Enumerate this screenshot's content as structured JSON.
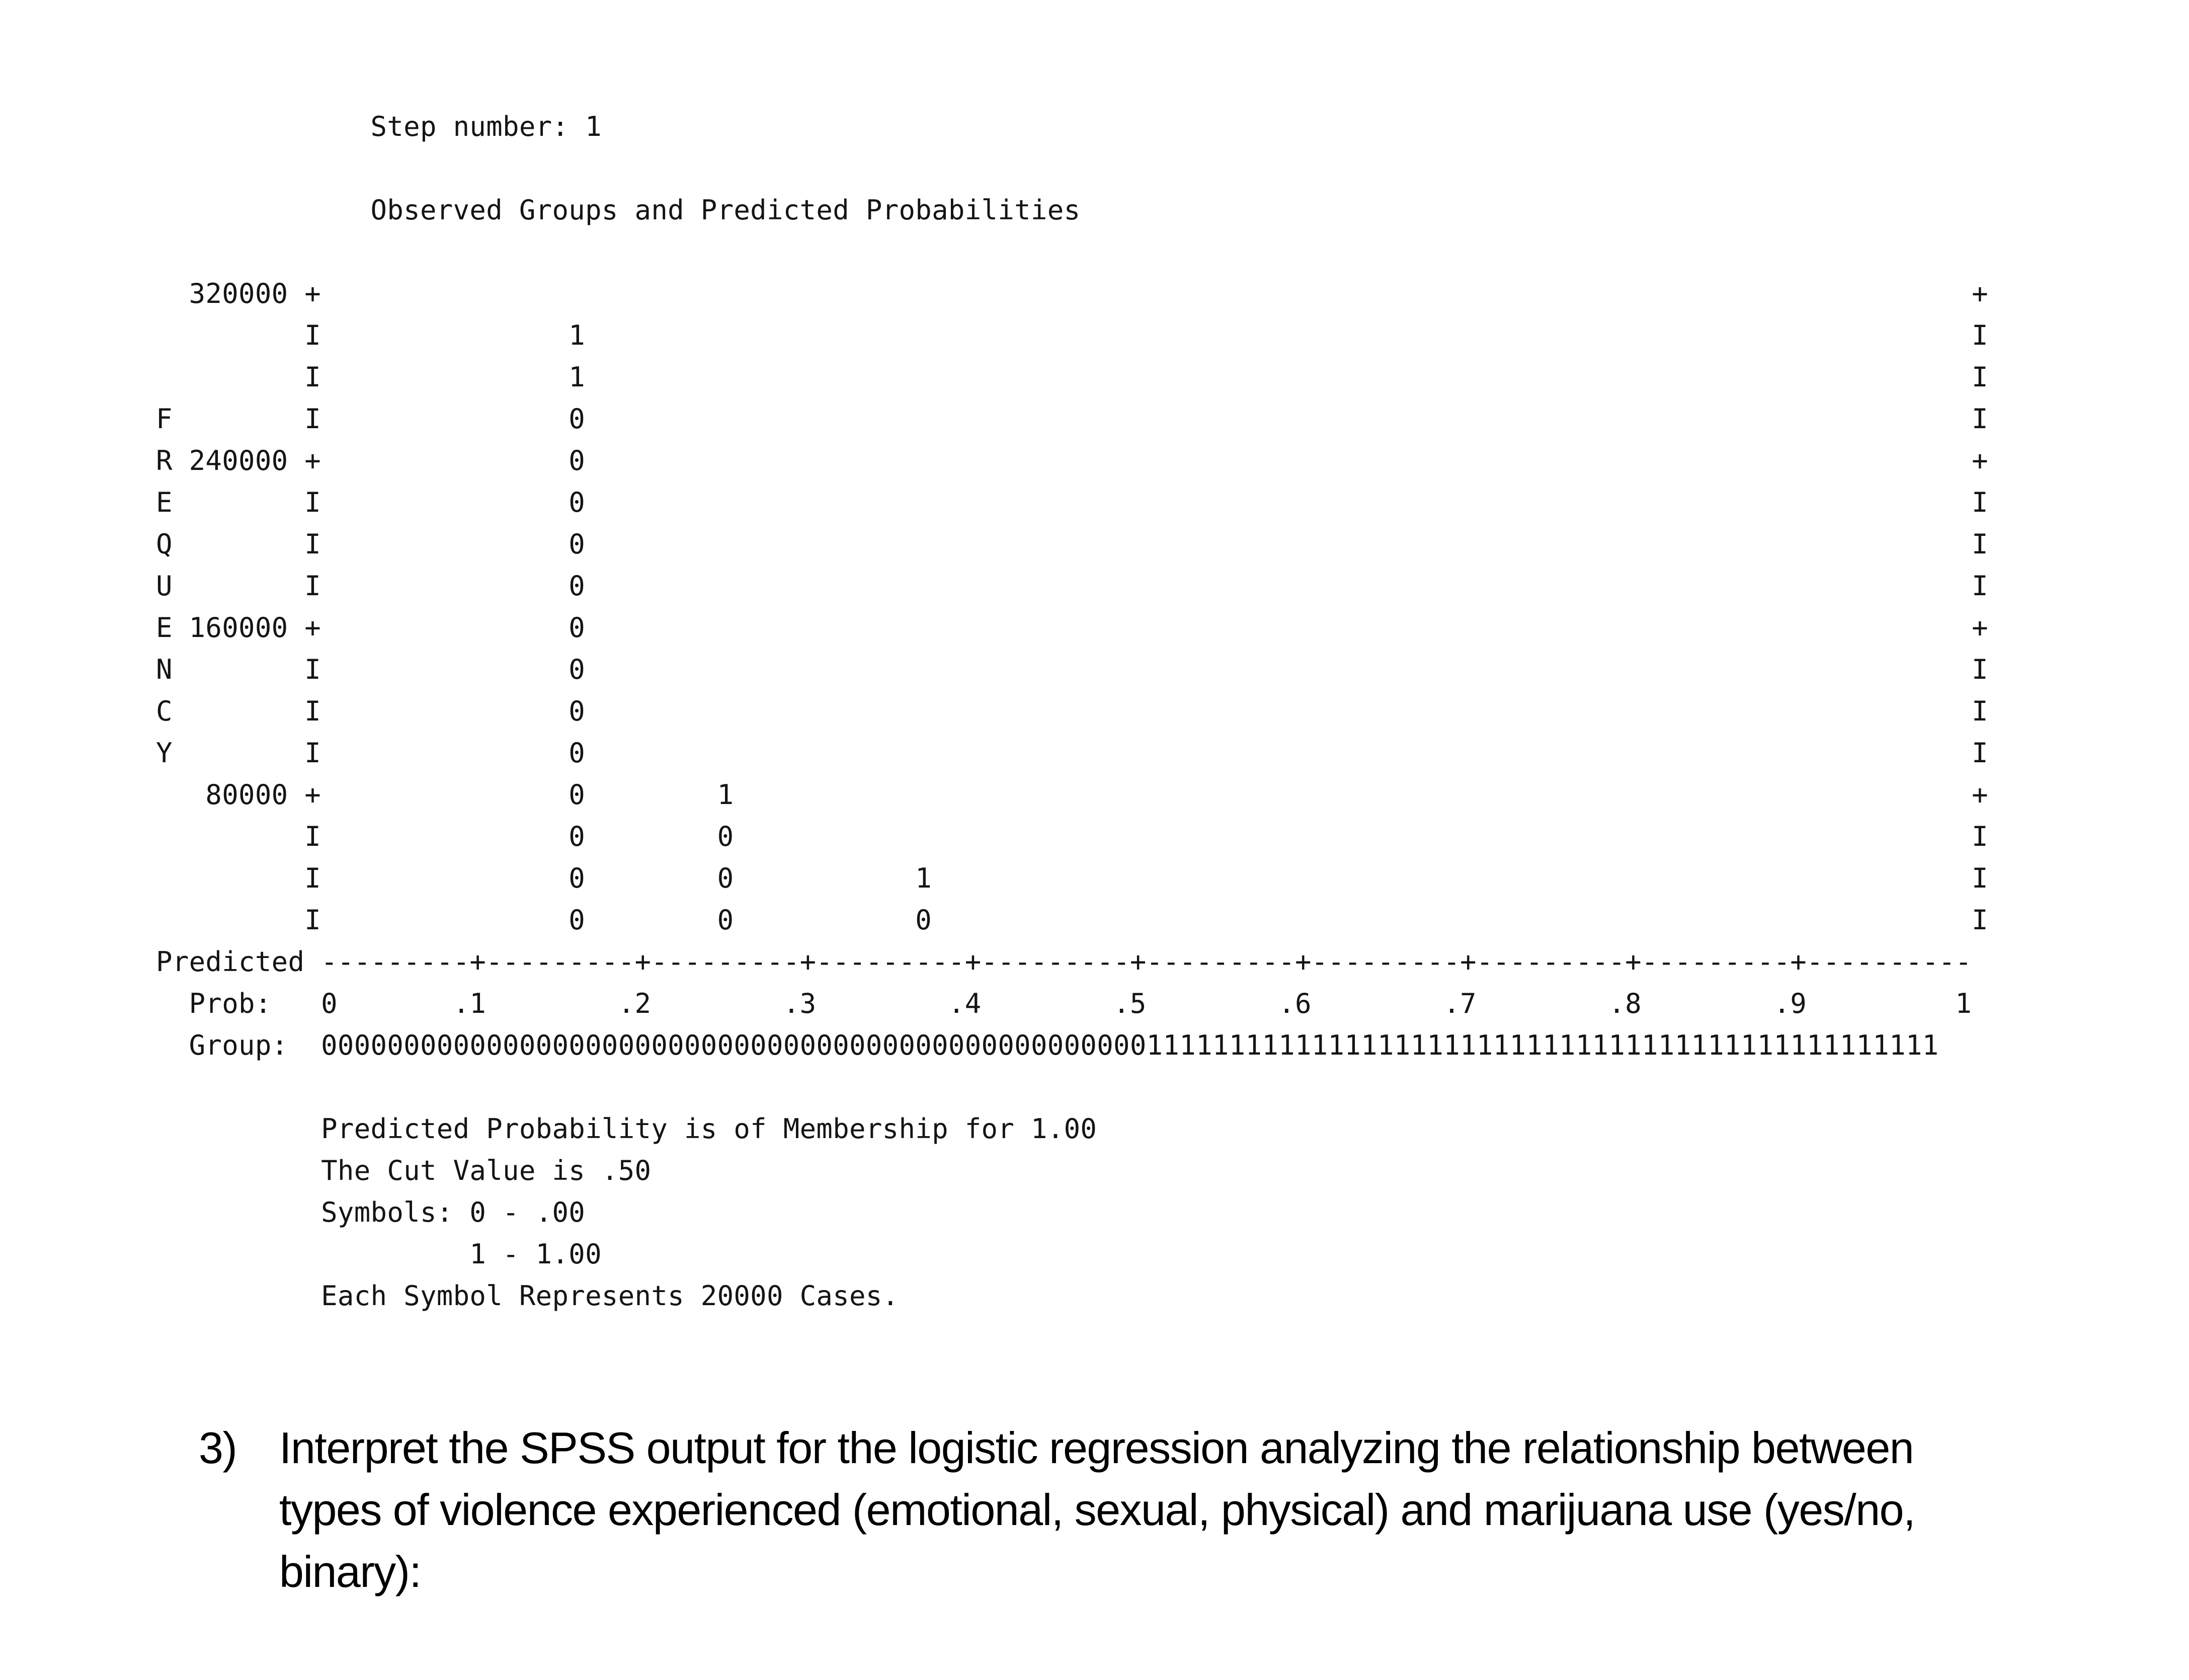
{
  "document": {
    "background": "#ffffff",
    "text_color": "#000000",
    "mono_text_color": "#141414"
  },
  "spss_output": {
    "step_header": "Step number: 1",
    "plot_title": "Observed Groups and Predicted Probabilities",
    "y_axis_label": "FREQUENCY",
    "y_tick_values": [
      320000,
      240000,
      160000,
      80000
    ],
    "x_axis_label_row": "Predicted",
    "x_axis_prob_label": "Prob:",
    "x_axis_group_label": "Group:",
    "x_tick_labels": [
      "0",
      ".1",
      ".2",
      ".3",
      ".4",
      ".5",
      ".6",
      ".7",
      ".8",
      ".9",
      "1"
    ],
    "footer_lines": [
      "Predicted Probability is of Membership for 1.00",
      "The Cut Value is .50",
      "Symbols: 0 - .00",
      "1 - 1.00",
      "Each Symbol Represents 20000 Cases."
    ],
    "lines": [
      "             Step number: 1",
      "",
      "             Observed Groups and Predicted Probabilities",
      "",
      "  320000 +                                                                                                    +",
      "         I               1                                                                                    I",
      "         I               1                                                                                    I",
      "F        I               0                                                                                    I",
      "R 240000 +               0                                                                                    +",
      "E        I               0                                                                                    I",
      "Q        I               0                                                                                    I",
      "U        I               0                                                                                    I",
      "E 160000 +               0                                                                                    +",
      "N        I               0                                                                                    I",
      "C        I               0                                                                                    I",
      "Y        I               0                                                                                    I",
      "   80000 +               0        1                                                                           +",
      "         I               0        0                                                                           I",
      "         I               0        0           1                                                               I",
      "         I               0        0           0                                                               I",
      "Predicted ---------+---------+---------+---------+---------+---------+---------+---------+---------+----------",
      "  Prob:   0       .1        .2        .3        .4        .5        .6        .7        .8        .9         1",
      "  Group:  00000000000000000000000000000000000000000000000000111111111111111111111111111111111111111111111111",
      "",
      "          Predicted Probability is of Membership for 1.00",
      "          The Cut Value is .50",
      "          Symbols: 0 - .00",
      "                   1 - 1.00",
      "          Each Symbol Represents 20000 Cases."
    ]
  },
  "chart_data": {
    "type": "bar",
    "subtype": "spss-ascii-classification-histogram",
    "title": "Observed Groups and Predicted Probabilities",
    "xlabel": "Predicted Prob",
    "ylabel": "FREQUENCY",
    "x_ticks": [
      0,
      0.1,
      0.2,
      0.3,
      0.4,
      0.5,
      0.6,
      0.7,
      0.8,
      0.9,
      1
    ],
    "y_ticks": [
      80000,
      160000,
      240000,
      320000
    ],
    "ylim": [
      0,
      320000
    ],
    "cases_per_symbol": 20000,
    "cut_value": 0.5,
    "membership_for": "1.00",
    "symbol_legend": {
      "0": ".00",
      "1": "1.00"
    },
    "columns": [
      {
        "prob": 0.15,
        "total_symbols": 15,
        "total_cases": 300000,
        "stack_bottom_to_top": [
          "0",
          "0",
          "0",
          "0",
          "0",
          "0",
          "0",
          "0",
          "0",
          "0",
          "0",
          "0",
          "0",
          "1",
          "1"
        ]
      },
      {
        "prob": 0.24,
        "total_symbols": 4,
        "total_cases": 80000,
        "stack_bottom_to_top": [
          "0",
          "0",
          "0",
          "1"
        ]
      },
      {
        "prob": 0.36,
        "total_symbols": 2,
        "total_cases": 40000,
        "stack_bottom_to_top": [
          "0",
          "1"
        ]
      }
    ],
    "group_axis": {
      "zeros_range": [
        0,
        0.5
      ],
      "ones_range": [
        0.5,
        1.0
      ]
    }
  },
  "question": {
    "number": "3)",
    "text": "Interpret the SPSS output for the logistic regression analyzing the relationship between\ntypes of violence experienced (emotional, sexual, physical) and marijuana use (yes/no,\nbinary):"
  }
}
